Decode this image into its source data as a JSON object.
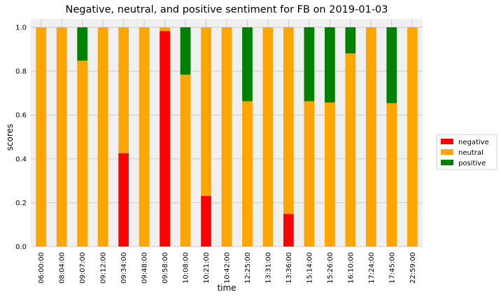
{
  "chart_data": {
    "type": "bar",
    "stacked": true,
    "title": "Negative, neutral, and positive sentiment for FB on 2019-01-03",
    "xlabel": "time",
    "ylabel": "scores",
    "ylim": [
      0,
      1.0
    ],
    "yticks": [
      "0.0",
      "0.2",
      "0.4",
      "0.6",
      "0.8",
      "1.0"
    ],
    "grid": true,
    "legend_position": "center-right",
    "categories": [
      "06:00:00",
      "08:04:00",
      "09:07:00",
      "09:12:00",
      "09:34:00",
      "09:48:00",
      "09:58:00",
      "10:08:00",
      "10:21:00",
      "10:42:00",
      "12:25:00",
      "13:31:00",
      "13:36:00",
      "15:14:00",
      "15:26:00",
      "16:10:00",
      "17:24:00",
      "17:45:00",
      "22:59:00"
    ],
    "series": [
      {
        "name": "negative",
        "color": "#ff0000",
        "values": [
          0,
          0,
          0,
          0,
          0.426,
          0,
          0.983,
          0,
          0.231,
          0,
          0,
          0,
          0.149,
          0,
          0,
          0,
          0,
          0,
          0
        ]
      },
      {
        "name": "neutral",
        "color": "#ffa500",
        "values": [
          1.0,
          1.0,
          0.848,
          1.0,
          0.574,
          1.0,
          0.017,
          0.784,
          0.769,
          1.0,
          0.663,
          1.0,
          0.851,
          0.663,
          0.657,
          0.881,
          1.0,
          0.654,
          1.0
        ]
      },
      {
        "name": "positive",
        "color": "#008000",
        "values": [
          0,
          0,
          0.152,
          0,
          0,
          0,
          0,
          0.216,
          0,
          0,
          0.337,
          0,
          0,
          0.337,
          0.343,
          0.119,
          0,
          0.346,
          0
        ]
      }
    ]
  },
  "colors": {
    "plot_background": "#f0f0f0",
    "grid": "#cbcbcb"
  }
}
